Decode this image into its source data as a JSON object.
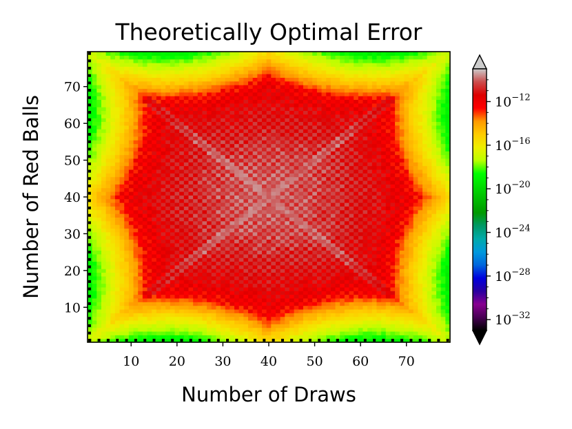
{
  "chart_data": {
    "type": "heatmap",
    "title": "Theoretically Optimal Error",
    "xlabel": "Number of Draws",
    "ylabel": "Number of Red Balls",
    "x_range": [
      1,
      79
    ],
    "y_range": [
      1,
      79
    ],
    "x_ticks": [
      "10",
      "20",
      "30",
      "40",
      "50",
      "60",
      "70"
    ],
    "y_ticks": [
      "10",
      "20",
      "30",
      "40",
      "50",
      "60",
      "70"
    ],
    "colorbar": {
      "scale": "log",
      "range_exp": [
        -33,
        -9
      ],
      "tick_base": "10",
      "tick_exponents": [
        "-32",
        "-28",
        "-24",
        "-20",
        "-16",
        "-12"
      ],
      "extend": "both",
      "colormap": "nipy_spectral"
    },
    "description_values": {
      "center_log10": -10,
      "inner_edge_log10": -13,
      "border_log10": -20
    }
  }
}
